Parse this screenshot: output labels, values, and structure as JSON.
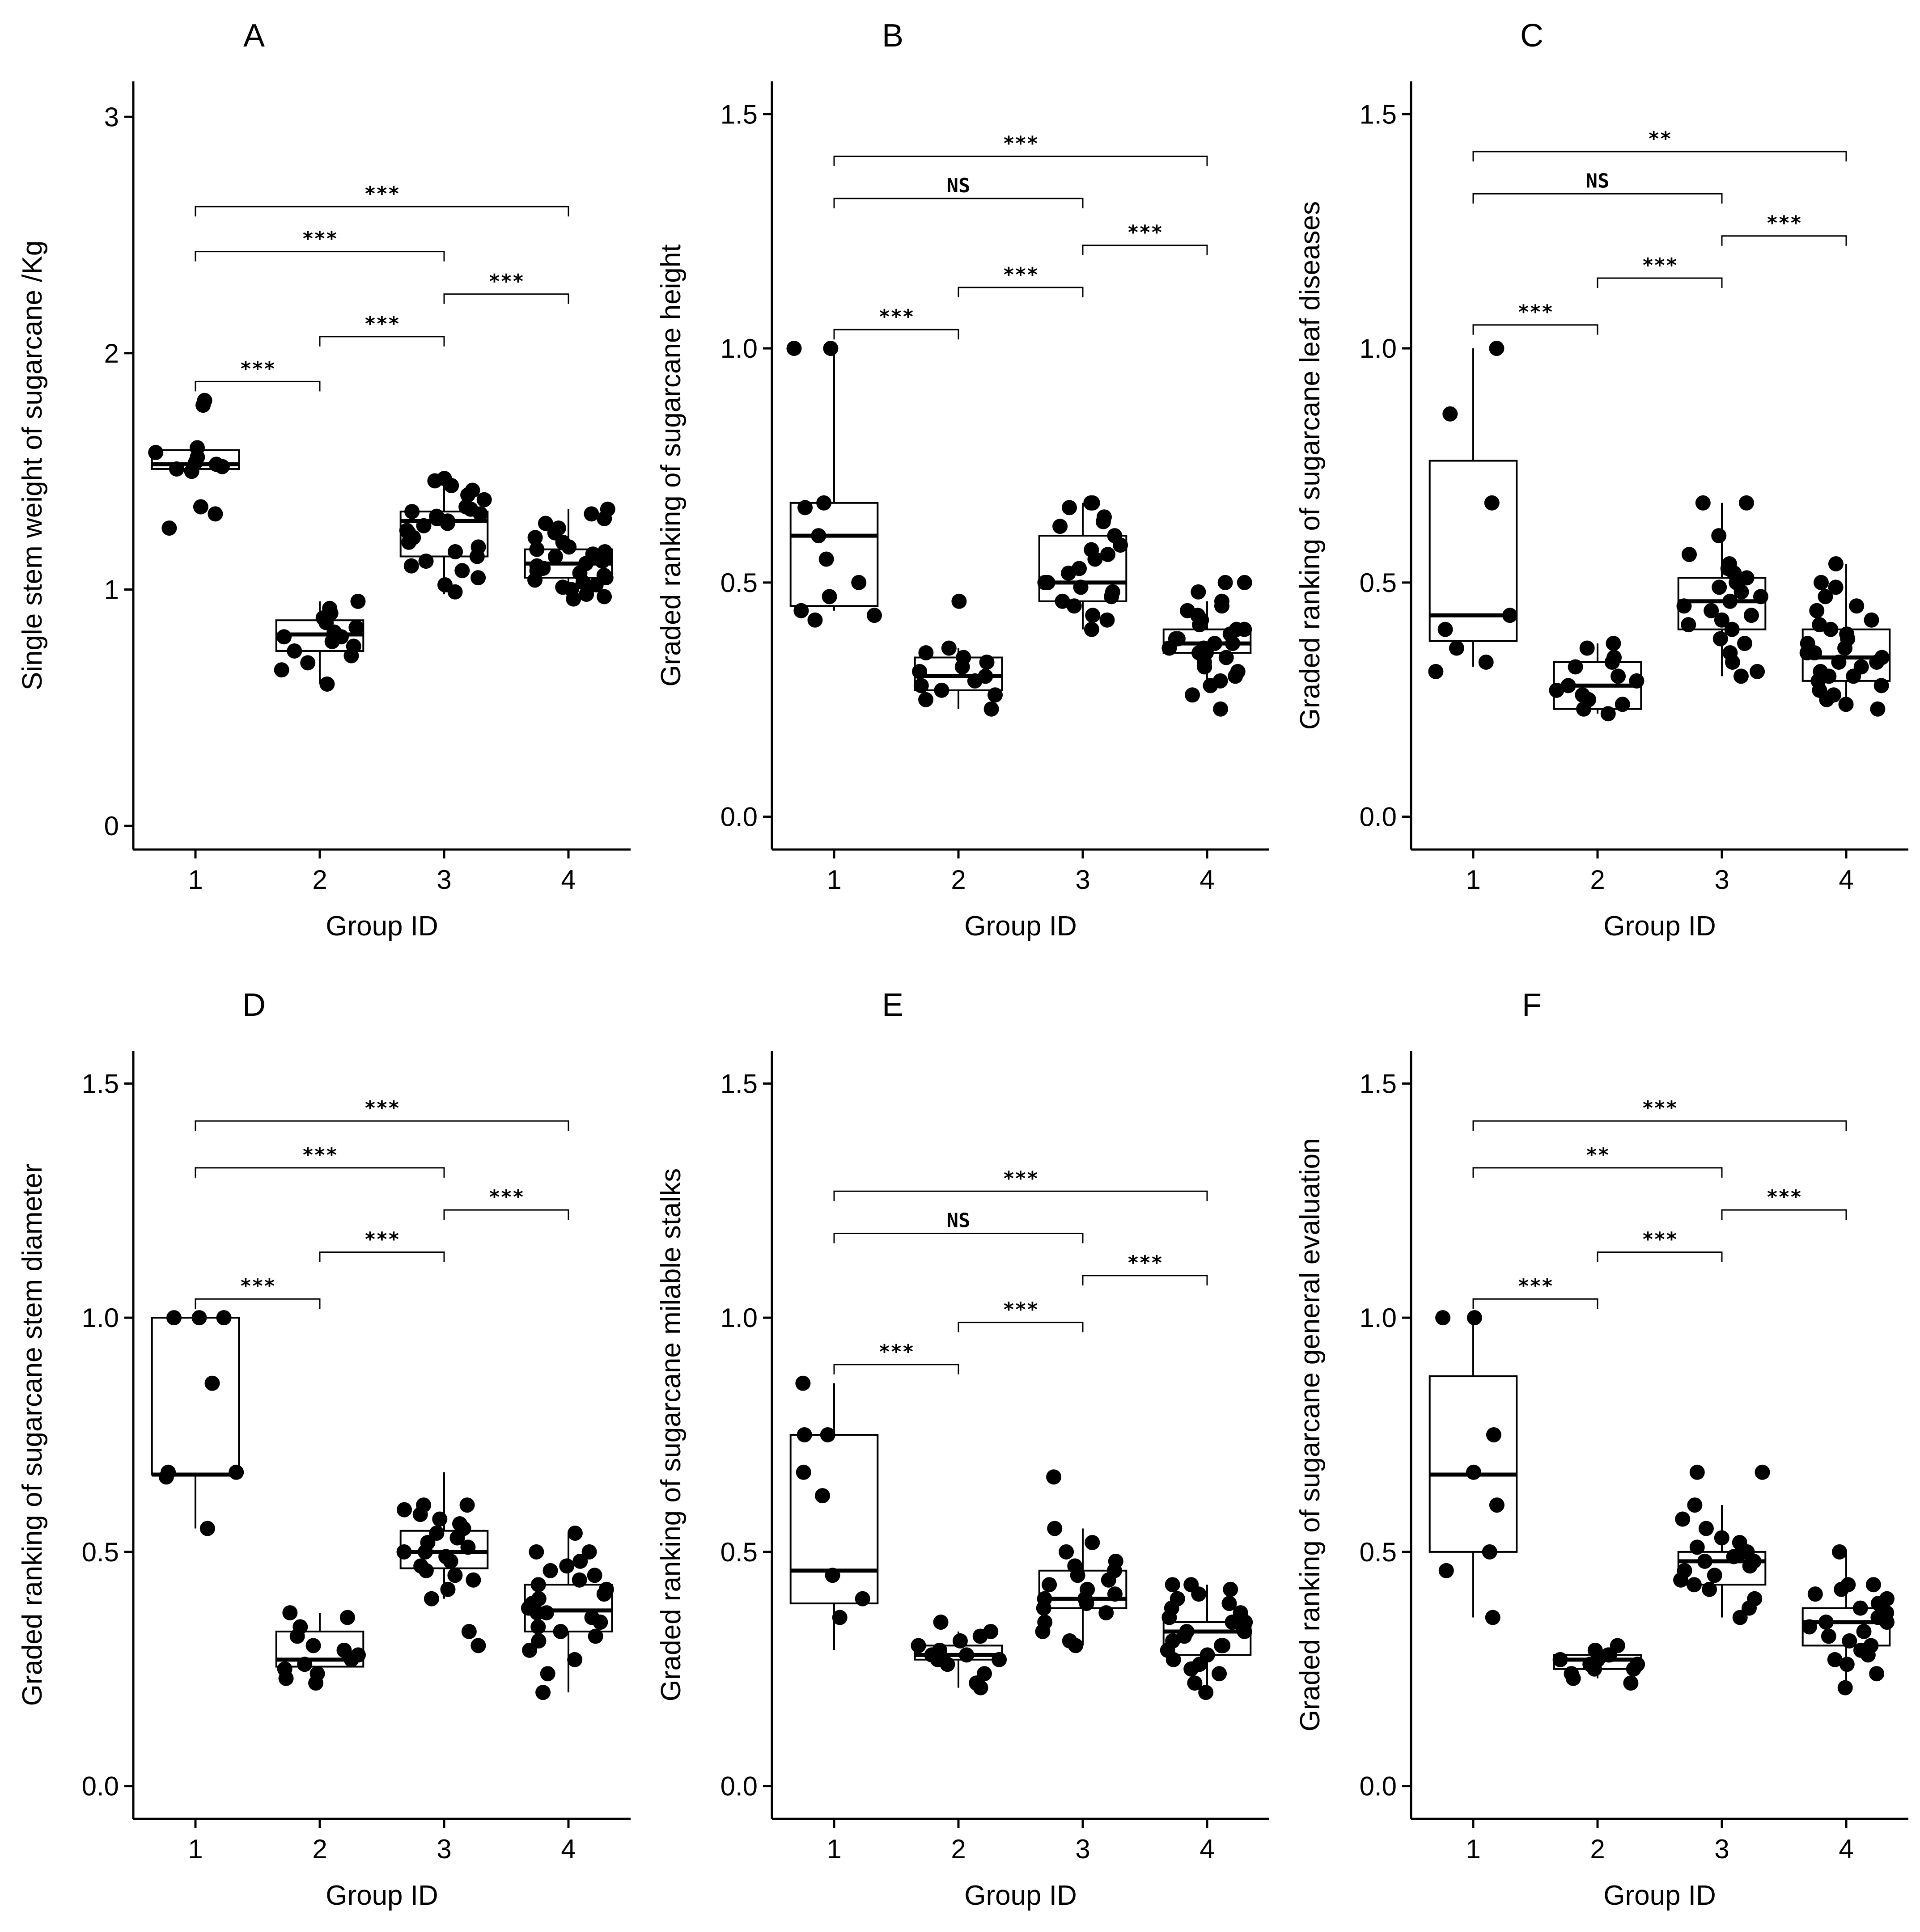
{
  "chart_data": [
    {
      "type": "box",
      "panel": "A",
      "xlabel": "Group ID",
      "ylabel": "Single stem weight of sugarcane /Kg",
      "ylim": [
        -0.1,
        3.15
      ],
      "yticks": [
        0,
        1,
        2,
        3
      ],
      "ytick_labels": [
        "0",
        "1",
        "2",
        "3"
      ],
      "categories": [
        "1",
        "2",
        "3",
        "4"
      ],
      "boxes": [
        {
          "group": "1",
          "whisker_low": 1.5,
          "q1": 1.51,
          "median": 1.53,
          "q3": 1.59,
          "whisker_high": 1.63
        },
        {
          "group": "2",
          "whisker_low": 0.6,
          "q1": 0.74,
          "median": 0.81,
          "q3": 0.87,
          "whisker_high": 0.95
        },
        {
          "group": "3",
          "whisker_low": 0.98,
          "q1": 1.14,
          "median": 1.29,
          "q3": 1.33,
          "whisker_high": 1.47
        },
        {
          "group": "4",
          "whisker_low": 0.96,
          "q1": 1.05,
          "median": 1.11,
          "q3": 1.17,
          "whisker_high": 1.34
        }
      ],
      "points": [
        [
          1.26,
          1.32,
          1.35,
          1.5,
          1.51,
          1.52,
          1.53,
          1.54,
          1.56,
          1.6,
          1.58,
          1.78,
          1.8
        ],
        [
          0.6,
          0.66,
          0.69,
          0.72,
          0.74,
          0.76,
          0.78,
          0.8,
          0.8,
          0.82,
          0.84,
          0.86,
          0.88,
          0.9,
          0.92,
          0.95
        ],
        [
          0.99,
          1.02,
          1.05,
          1.08,
          1.1,
          1.12,
          1.14,
          1.16,
          1.18,
          1.2,
          1.22,
          1.24,
          1.25,
          1.27,
          1.28,
          1.29,
          1.3,
          1.31,
          1.32,
          1.33,
          1.34,
          1.35,
          1.38,
          1.4,
          1.42,
          1.44,
          1.46,
          1.47
        ],
        [
          0.96,
          0.97,
          0.98,
          1.0,
          1.01,
          1.02,
          1.03,
          1.04,
          1.05,
          1.06,
          1.07,
          1.08,
          1.09,
          1.1,
          1.11,
          1.12,
          1.13,
          1.14,
          1.15,
          1.16,
          1.17,
          1.18,
          1.2,
          1.22,
          1.24,
          1.26,
          1.28,
          1.3,
          1.32,
          1.34
        ]
      ],
      "comparisons": [
        {
          "from": "1",
          "to": "2",
          "y": 1.88,
          "label": "***"
        },
        {
          "from": "2",
          "to": "3",
          "y": 2.07,
          "label": "***"
        },
        {
          "from": "3",
          "to": "4",
          "y": 2.25,
          "label": "***"
        },
        {
          "from": "1",
          "to": "3",
          "y": 2.43,
          "label": "***"
        },
        {
          "from": "1",
          "to": "4",
          "y": 2.62,
          "label": "***"
        }
      ]
    },
    {
      "type": "box",
      "panel": "B",
      "xlabel": "Group ID",
      "ylabel": "Graded ranking of sugarcane height",
      "ylim": [
        -0.07,
        1.57
      ],
      "yticks": [
        0,
        0.5,
        1,
        1.5
      ],
      "ytick_labels": [
        "0.0",
        "0.5",
        "1.0",
        "1.5"
      ],
      "categories": [
        "1",
        "2",
        "3",
        "4"
      ],
      "boxes": [
        {
          "group": "1",
          "whisker_low": 0.44,
          "q1": 0.45,
          "median": 0.6,
          "q3": 0.67,
          "whisker_high": 1.0
        },
        {
          "group": "2",
          "whisker_low": 0.23,
          "q1": 0.27,
          "median": 0.3,
          "q3": 0.34,
          "whisker_high": 0.36
        },
        {
          "group": "3",
          "whisker_low": 0.4,
          "q1": 0.46,
          "median": 0.5,
          "q3": 0.6,
          "whisker_high": 0.67
        },
        {
          "group": "4",
          "whisker_low": 0.29,
          "q1": 0.35,
          "median": 0.37,
          "q3": 0.4,
          "whisker_high": 0.46
        }
      ],
      "points": [
        [
          0.42,
          0.43,
          0.44,
          0.47,
          0.5,
          0.55,
          0.6,
          0.66,
          0.67,
          1.0,
          1.0
        ],
        [
          0.23,
          0.25,
          0.26,
          0.27,
          0.28,
          0.29,
          0.3,
          0.31,
          0.32,
          0.33,
          0.34,
          0.35,
          0.36,
          0.46
        ],
        [
          0.4,
          0.42,
          0.43,
          0.45,
          0.46,
          0.47,
          0.48,
          0.49,
          0.5,
          0.5,
          0.52,
          0.53,
          0.55,
          0.56,
          0.57,
          0.58,
          0.6,
          0.62,
          0.63,
          0.64,
          0.66,
          0.67,
          0.67
        ],
        [
          0.23,
          0.26,
          0.28,
          0.29,
          0.3,
          0.31,
          0.32,
          0.33,
          0.34,
          0.35,
          0.35,
          0.36,
          0.36,
          0.37,
          0.37,
          0.38,
          0.38,
          0.39,
          0.4,
          0.4,
          0.41,
          0.42,
          0.43,
          0.44,
          0.45,
          0.46,
          0.48,
          0.5,
          0.5
        ]
      ],
      "comparisons": [
        {
          "from": "1",
          "to": "2",
          "y": 1.04,
          "label": "***"
        },
        {
          "from": "2",
          "to": "3",
          "y": 1.13,
          "label": "***"
        },
        {
          "from": "3",
          "to": "4",
          "y": 1.22,
          "label": "***"
        },
        {
          "from": "1",
          "to": "3",
          "y": 1.32,
          "label": "NS"
        },
        {
          "from": "1",
          "to": "4",
          "y": 1.41,
          "label": "***"
        }
      ]
    },
    {
      "type": "box",
      "panel": "C",
      "xlabel": "Group ID",
      "ylabel": "Graded ranking of sugarcane leaf diseases",
      "ylim": [
        -0.07,
        1.57
      ],
      "yticks": [
        0,
        0.5,
        1,
        1.5
      ],
      "ytick_labels": [
        "0.0",
        "0.5",
        "1.0",
        "1.5"
      ],
      "categories": [
        "1",
        "2",
        "3",
        "4"
      ],
      "boxes": [
        {
          "group": "1",
          "whisker_low": 0.32,
          "q1": 0.375,
          "median": 0.43,
          "q3": 0.76,
          "whisker_high": 1.0
        },
        {
          "group": "2",
          "whisker_low": 0.22,
          "q1": 0.23,
          "median": 0.28,
          "q3": 0.33,
          "whisker_high": 0.37
        },
        {
          "group": "3",
          "whisker_low": 0.3,
          "q1": 0.4,
          "median": 0.46,
          "q3": 0.51,
          "whisker_high": 0.67
        },
        {
          "group": "4",
          "whisker_low": 0.23,
          "q1": 0.29,
          "median": 0.34,
          "q3": 0.4,
          "whisker_high": 0.54
        }
      ],
      "points": [
        [
          0.31,
          0.33,
          0.36,
          0.4,
          0.43,
          0.67,
          0.86,
          1.0
        ],
        [
          0.22,
          0.23,
          0.24,
          0.25,
          0.26,
          0.27,
          0.28,
          0.29,
          0.3,
          0.32,
          0.33,
          0.34,
          0.36,
          0.37
        ],
        [
          0.3,
          0.31,
          0.33,
          0.35,
          0.37,
          0.38,
          0.4,
          0.41,
          0.42,
          0.43,
          0.44,
          0.45,
          0.46,
          0.47,
          0.48,
          0.49,
          0.5,
          0.51,
          0.52,
          0.53,
          0.54,
          0.56,
          0.6,
          0.67,
          0.67
        ],
        [
          0.23,
          0.24,
          0.25,
          0.26,
          0.27,
          0.28,
          0.29,
          0.3,
          0.3,
          0.31,
          0.32,
          0.33,
          0.33,
          0.34,
          0.35,
          0.35,
          0.36,
          0.37,
          0.38,
          0.39,
          0.4,
          0.41,
          0.42,
          0.44,
          0.45,
          0.47,
          0.49,
          0.5,
          0.54
        ]
      ],
      "comparisons": [
        {
          "from": "1",
          "to": "2",
          "y": 1.05,
          "label": "***"
        },
        {
          "from": "2",
          "to": "3",
          "y": 1.15,
          "label": "***"
        },
        {
          "from": "3",
          "to": "4",
          "y": 1.24,
          "label": "***"
        },
        {
          "from": "1",
          "to": "3",
          "y": 1.33,
          "label": "NS"
        },
        {
          "from": "1",
          "to": "4",
          "y": 1.42,
          "label": "**"
        }
      ]
    },
    {
      "type": "box",
      "panel": "D",
      "xlabel": "Group ID",
      "ylabel": "Graded ranking of sugarcane stem diameter",
      "ylim": [
        -0.07,
        1.57
      ],
      "yticks": [
        0,
        0.5,
        1,
        1.5
      ],
      "ytick_labels": [
        "0.0",
        "0.5",
        "1.0",
        "1.5"
      ],
      "categories": [
        "1",
        "2",
        "3",
        "4"
      ],
      "boxes": [
        {
          "group": "1",
          "whisker_low": 0.55,
          "q1": 0.665,
          "median": 0.665,
          "q3": 1.0,
          "whisker_high": 1.0
        },
        {
          "group": "2",
          "whisker_low": 0.23,
          "q1": 0.255,
          "median": 0.27,
          "q3": 0.33,
          "whisker_high": 0.37
        },
        {
          "group": "3",
          "whisker_low": 0.4,
          "q1": 0.465,
          "median": 0.5,
          "q3": 0.545,
          "whisker_high": 0.67
        },
        {
          "group": "4",
          "whisker_low": 0.2,
          "q1": 0.33,
          "median": 0.375,
          "q3": 0.43,
          "whisker_high": 0.54
        }
      ],
      "points": [
        [
          0.55,
          0.66,
          0.67,
          0.67,
          0.86,
          1.0,
          1.0,
          1.0
        ],
        [
          0.22,
          0.23,
          0.24,
          0.25,
          0.26,
          0.27,
          0.28,
          0.29,
          0.3,
          0.32,
          0.34,
          0.36,
          0.37
        ],
        [
          0.3,
          0.33,
          0.4,
          0.42,
          0.44,
          0.45,
          0.46,
          0.47,
          0.48,
          0.49,
          0.5,
          0.5,
          0.51,
          0.52,
          0.53,
          0.54,
          0.55,
          0.56,
          0.57,
          0.58,
          0.59,
          0.6,
          0.6
        ],
        [
          0.2,
          0.24,
          0.27,
          0.29,
          0.31,
          0.32,
          0.33,
          0.34,
          0.35,
          0.36,
          0.37,
          0.37,
          0.38,
          0.39,
          0.4,
          0.41,
          0.42,
          0.43,
          0.44,
          0.45,
          0.46,
          0.47,
          0.48,
          0.5,
          0.5,
          0.54
        ]
      ],
      "comparisons": [
        {
          "from": "1",
          "to": "2",
          "y": 1.04,
          "label": "***"
        },
        {
          "from": "2",
          "to": "3",
          "y": 1.14,
          "label": "***"
        },
        {
          "from": "3",
          "to": "4",
          "y": 1.23,
          "label": "***"
        },
        {
          "from": "1",
          "to": "3",
          "y": 1.32,
          "label": "***"
        },
        {
          "from": "1",
          "to": "4",
          "y": 1.42,
          "label": "***"
        }
      ]
    },
    {
      "type": "box",
      "panel": "E",
      "xlabel": "Group ID",
      "ylabel": "Graded ranking of sugarcane milable stalks",
      "ylim": [
        -0.07,
        1.57
      ],
      "yticks": [
        0,
        0.5,
        1,
        1.5
      ],
      "ytick_labels": [
        "0.0",
        "0.5",
        "1.0",
        "1.5"
      ],
      "categories": [
        "1",
        "2",
        "3",
        "4"
      ],
      "boxes": [
        {
          "group": "1",
          "whisker_low": 0.29,
          "q1": 0.39,
          "median": 0.46,
          "q3": 0.75,
          "whisker_high": 0.86
        },
        {
          "group": "2",
          "whisker_low": 0.21,
          "q1": 0.27,
          "median": 0.28,
          "q3": 0.3,
          "whisker_high": 0.33
        },
        {
          "group": "3",
          "whisker_low": 0.3,
          "q1": 0.38,
          "median": 0.4,
          "q3": 0.46,
          "whisker_high": 0.55
        },
        {
          "group": "4",
          "whisker_low": 0.2,
          "q1": 0.28,
          "median": 0.33,
          "q3": 0.35,
          "whisker_high": 0.43
        }
      ],
      "points": [
        [
          0.36,
          0.4,
          0.45,
          0.62,
          0.67,
          0.75,
          0.75,
          0.86
        ],
        [
          0.21,
          0.22,
          0.24,
          0.26,
          0.27,
          0.27,
          0.28,
          0.28,
          0.29,
          0.3,
          0.31,
          0.32,
          0.33,
          0.35
        ],
        [
          0.3,
          0.31,
          0.33,
          0.35,
          0.37,
          0.38,
          0.39,
          0.4,
          0.4,
          0.41,
          0.42,
          0.43,
          0.44,
          0.45,
          0.46,
          0.47,
          0.48,
          0.5,
          0.52,
          0.55,
          0.66
        ],
        [
          0.2,
          0.22,
          0.24,
          0.25,
          0.26,
          0.27,
          0.28,
          0.29,
          0.3,
          0.3,
          0.31,
          0.32,
          0.33,
          0.33,
          0.34,
          0.35,
          0.35,
          0.36,
          0.37,
          0.38,
          0.39,
          0.4,
          0.41,
          0.42,
          0.43,
          0.43
        ]
      ],
      "comparisons": [
        {
          "from": "1",
          "to": "2",
          "y": 0.9,
          "label": "***"
        },
        {
          "from": "2",
          "to": "3",
          "y": 0.99,
          "label": "***"
        },
        {
          "from": "3",
          "to": "4",
          "y": 1.09,
          "label": "***"
        },
        {
          "from": "1",
          "to": "3",
          "y": 1.18,
          "label": "NS"
        },
        {
          "from": "1",
          "to": "4",
          "y": 1.27,
          "label": "***"
        }
      ]
    },
    {
      "type": "box",
      "panel": "F",
      "xlabel": "Group ID",
      "ylabel": "Graded ranking of sugarcane general evaluation",
      "ylim": [
        -0.07,
        1.57
      ],
      "yticks": [
        0,
        0.5,
        1,
        1.5
      ],
      "ytick_labels": [
        "0.0",
        "0.5",
        "1.0",
        "1.5"
      ],
      "categories": [
        "1",
        "2",
        "3",
        "4"
      ],
      "boxes": [
        {
          "group": "1",
          "whisker_low": 0.36,
          "q1": 0.5,
          "median": 0.665,
          "q3": 0.875,
          "whisker_high": 1.0
        },
        {
          "group": "2",
          "whisker_low": 0.23,
          "q1": 0.25,
          "median": 0.27,
          "q3": 0.28,
          "whisker_high": 0.3
        },
        {
          "group": "3",
          "whisker_low": 0.36,
          "q1": 0.43,
          "median": 0.48,
          "q3": 0.5,
          "whisker_high": 0.6
        },
        {
          "group": "4",
          "whisker_low": 0.21,
          "q1": 0.3,
          "median": 0.35,
          "q3": 0.38,
          "whisker_high": 0.5
        }
      ],
      "points": [
        [
          0.36,
          0.46,
          0.5,
          0.6,
          0.67,
          0.75,
          1.0,
          1.0
        ],
        [
          0.22,
          0.23,
          0.24,
          0.25,
          0.25,
          0.26,
          0.26,
          0.27,
          0.27,
          0.28,
          0.28,
          0.29,
          0.3
        ],
        [
          0.36,
          0.38,
          0.4,
          0.42,
          0.43,
          0.44,
          0.45,
          0.46,
          0.47,
          0.48,
          0.48,
          0.49,
          0.5,
          0.5,
          0.51,
          0.52,
          0.53,
          0.55,
          0.57,
          0.6,
          0.67,
          0.67
        ],
        [
          0.21,
          0.24,
          0.26,
          0.27,
          0.28,
          0.29,
          0.3,
          0.31,
          0.32,
          0.33,
          0.34,
          0.35,
          0.35,
          0.36,
          0.37,
          0.38,
          0.39,
          0.4,
          0.41,
          0.42,
          0.43,
          0.43,
          0.5
        ]
      ],
      "comparisons": [
        {
          "from": "1",
          "to": "2",
          "y": 1.04,
          "label": "***"
        },
        {
          "from": "2",
          "to": "3",
          "y": 1.14,
          "label": "***"
        },
        {
          "from": "3",
          "to": "4",
          "y": 1.23,
          "label": "***"
        },
        {
          "from": "1",
          "to": "3",
          "y": 1.32,
          "label": "**"
        },
        {
          "from": "1",
          "to": "4",
          "y": 1.42,
          "label": "***"
        }
      ]
    }
  ]
}
